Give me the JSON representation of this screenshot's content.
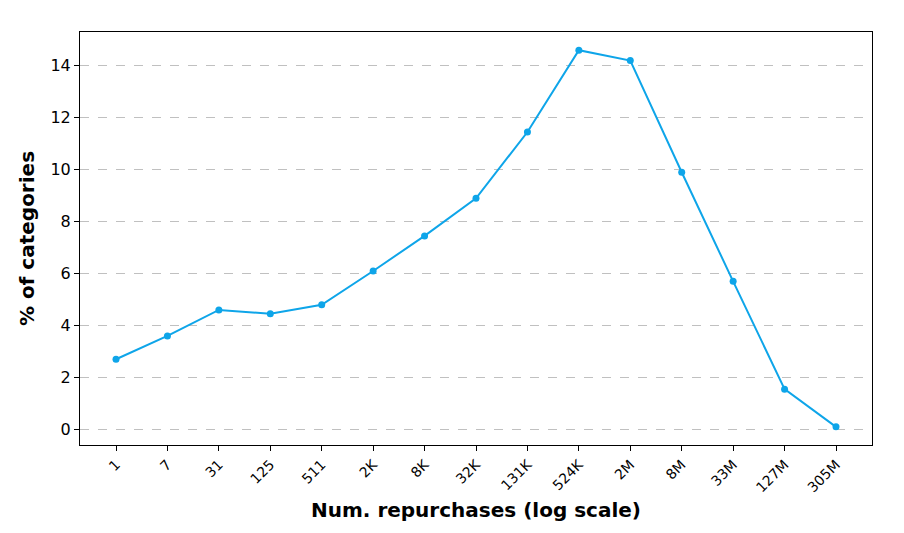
{
  "chart_data": {
    "type": "line",
    "x_label": "Num. repurchases (log scale)",
    "y_label": "% of categories",
    "categories": [
      "1",
      "7",
      "31",
      "125",
      "511",
      "2K",
      "8K",
      "32K",
      "131K",
      "524K",
      "2M",
      "8M",
      "33M",
      "127M",
      "305M"
    ],
    "values": [
      2.7,
      3.6,
      4.6,
      4.45,
      4.8,
      6.1,
      7.45,
      8.9,
      11.45,
      14.6,
      14.2,
      9.9,
      5.7,
      1.55,
      0.1
    ],
    "color": "#0ea5e9",
    "marker": "circle",
    "line_style": "solid",
    "ylim": [
      -0.6,
      15.3
    ],
    "yticks": [
      0,
      2,
      4,
      6,
      8,
      10,
      12,
      14
    ],
    "grid": true
  }
}
